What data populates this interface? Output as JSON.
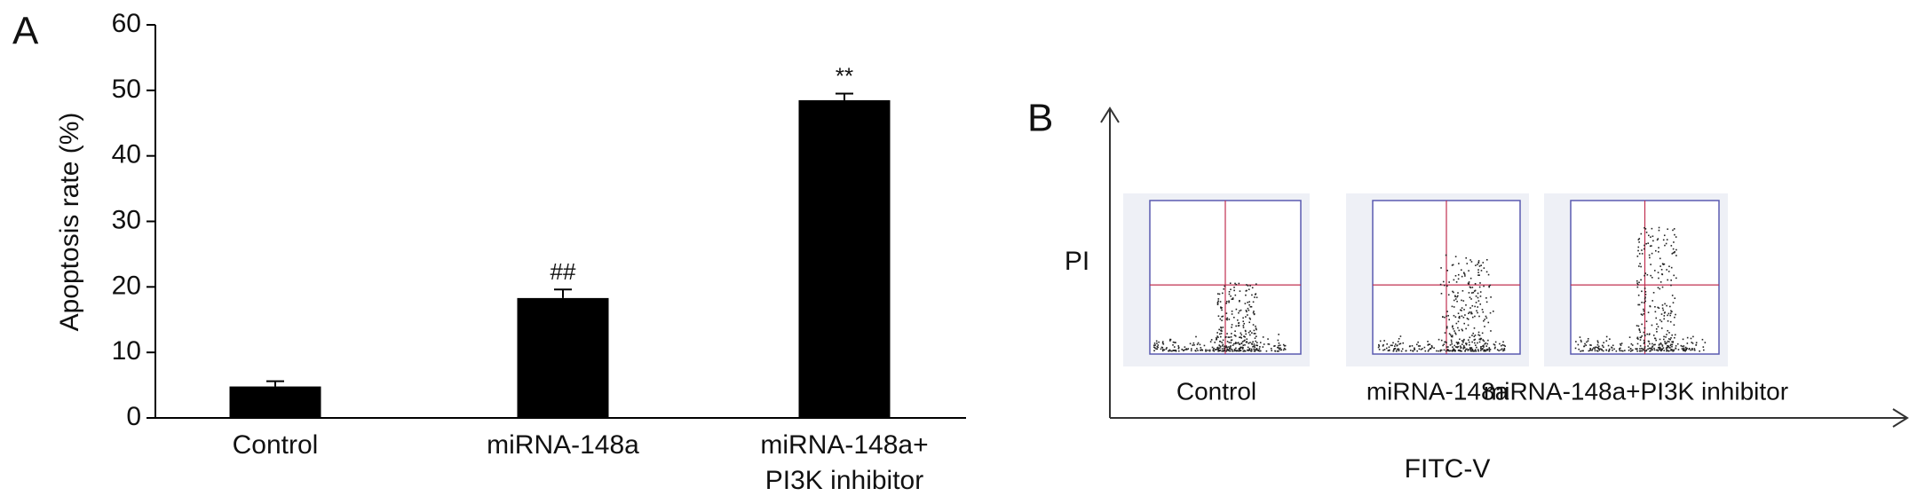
{
  "chart_data": {
    "type": "bar",
    "panel_label": "A",
    "y_label": "Apoptosis rate (%)",
    "categories": [
      [
        "Control"
      ],
      [
        "miRNA-148a"
      ],
      [
        "miRNA-148a+",
        "PI3K inhibitor"
      ]
    ],
    "values": [
      4.8,
      18.3,
      48.5
    ],
    "errors": [
      0.8,
      1.3,
      1.0
    ],
    "significance": [
      null,
      "##",
      "**"
    ],
    "color": "#000000",
    "ylim": [
      0,
      60
    ],
    "yticks": [
      0,
      10,
      20,
      30,
      40,
      50,
      60
    ],
    "grid": false
  },
  "panel_b": {
    "panel_label": "B",
    "y_label": "PI",
    "x_label": "FITC-V",
    "samples": [
      "Control",
      "miRNA-148a",
      "miRNA-148a+PI3K inhibitor"
    ]
  }
}
